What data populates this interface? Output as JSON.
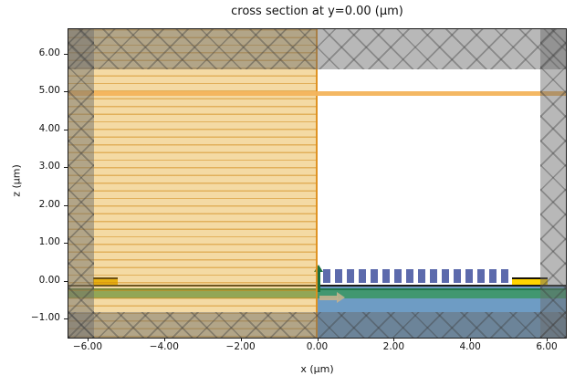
{
  "title": "cross section at y=0.00 (μm)",
  "xlabel": "x (μm)",
  "ylabel": "z (μm)",
  "colors": {
    "background": "#ffffff",
    "frame": "#1a1a1a",
    "text": "#111111",
    "pml_gray": "rgba(106,106,106,0.48)",
    "monitor_yellow": "rgba(229,168,38,0.42)",
    "flux_orange": "rgba(243,180,92,0.95)",
    "tooth_blue": "#5c6aac",
    "slab_green": "rgba(58,150,98,0.85)",
    "substrate_blue": "rgba(85,139,186,0.85)",
    "contact_gold": "#ffd400",
    "source_green": "#1c7040",
    "source_tan": "rgba(196,178,142,0.9)"
  },
  "chart_data": {
    "type": "cross_section_geometry",
    "title": "cross section at y=0.00 (μm)",
    "xlabel": "x (μm)",
    "ylabel": "z (μm)",
    "xlim": [
      -6.5,
      6.5
    ],
    "zlim": [
      -1.5,
      6.65
    ],
    "grid": false,
    "legend": false,
    "x_axis": {
      "ticks": [
        {
          "v": -6,
          "label": "−6.00"
        },
        {
          "v": -4,
          "label": "−4.00"
        },
        {
          "v": -2,
          "label": "−2.00"
        },
        {
          "v": 0,
          "label": "0.00"
        },
        {
          "v": 2,
          "label": "2.00"
        },
        {
          "v": 4,
          "label": "4.00"
        },
        {
          "v": 6,
          "label": "6.00"
        }
      ]
    },
    "z_axis": {
      "ticks": [
        {
          "v": 6,
          "label": "6.00"
        },
        {
          "v": 5,
          "label": "5.00"
        },
        {
          "v": 4,
          "label": "4.00"
        },
        {
          "v": 3,
          "label": "3.00"
        },
        {
          "v": 2,
          "label": "2.00"
        },
        {
          "v": 1,
          "label": "1.00"
        },
        {
          "v": 0,
          "label": "0.00"
        },
        {
          "v": -1,
          "label": "−1.00"
        }
      ]
    },
    "layers": [
      {
        "kind": "rect",
        "name": "substrate-region-blue",
        "x": [
          0,
          6.5
        ],
        "z": [
          -1.5,
          -0.15
        ],
        "fill": "rgba(85,139,186,0.85)"
      },
      {
        "kind": "rect",
        "name": "slab-layer-green",
        "x": [
          -6.5,
          6.5
        ],
        "z": [
          -0.46,
          -0.2
        ],
        "fill": "rgba(58,150,98,0.85)",
        "cap": "rgba(30,115,70,0.9)"
      },
      {
        "kind": "rect",
        "name": "thin-film-layer-black",
        "x": [
          -6.5,
          6.5
        ],
        "z": [
          -0.15,
          -0.095
        ],
        "fill": "rgba(14,14,14,0.95)"
      },
      {
        "kind": "rect",
        "name": "metal-contact-left",
        "x": [
          -5.85,
          -5.22
        ],
        "z": [
          -0.09,
          0.085
        ],
        "fill": "#e8b703",
        "cap": "#181204"
      },
      {
        "kind": "rect",
        "name": "metal-contact-right",
        "x": [
          5.1,
          6.02
        ],
        "z": [
          -0.09,
          0.085
        ],
        "fill": "#ffd400",
        "cap": "#181204"
      },
      {
        "kind": "teeth",
        "name": "grating-tooth",
        "count": 16,
        "x_start": 0.16,
        "period": 0.31,
        "tooth_width": 0.185,
        "z": [
          -0.06,
          0.3
        ],
        "fill": "#5c6aac"
      },
      {
        "kind": "arrow-right",
        "name": "source-direction-arrow",
        "x": [
          0.07,
          0.73
        ],
        "z": -0.45,
        "fill": "rgba(196,178,142,0.9)"
      },
      {
        "kind": "arrow-up",
        "name": "source-polarization-arrow",
        "x": 0.04,
        "z": [
          -0.3,
          0.44
        ],
        "fill": "#1c7040"
      },
      {
        "kind": "rect",
        "name": "field-monitor-region",
        "x": [
          -6.5,
          0
        ],
        "z": [
          -1.5,
          6.65
        ],
        "fill": "rgba(229,168,38,0.42)",
        "hatch": "h",
        "hatch_color": "rgba(206,134,18,0.5)",
        "edge_right": "rgba(222,143,28,0.95)"
      },
      {
        "kind": "rect",
        "name": "flux-monitor-line",
        "x": [
          -6.5,
          6.5
        ],
        "z": [
          4.9,
          5.01
        ],
        "fill": "rgba(243,180,92,0.95)"
      },
      {
        "kind": "rect",
        "name": "pml-boundary-top",
        "x": [
          -6.5,
          6.5
        ],
        "z": [
          5.6,
          6.65
        ],
        "fill": "rgba(106,106,106,0.48)",
        "hatch": "x",
        "hatch_color": "rgba(60,60,60,0.38)"
      },
      {
        "kind": "rect",
        "name": "pml-boundary-bottom",
        "x": [
          -6.5,
          6.5
        ],
        "z": [
          -1.5,
          -0.82
        ],
        "fill": "rgba(106,106,106,0.48)",
        "hatch": "x",
        "hatch_color": "rgba(60,60,60,0.38)"
      },
      {
        "kind": "rect",
        "name": "pml-boundary-left",
        "x": [
          -6.5,
          -5.83
        ],
        "z": [
          -1.5,
          6.65
        ],
        "fill": "rgba(106,106,106,0.48)",
        "hatch": "x",
        "hatch_color": "rgba(60,60,60,0.38)"
      },
      {
        "kind": "rect",
        "name": "pml-boundary-right",
        "x": [
          5.83,
          6.5
        ],
        "z": [
          -1.5,
          6.65
        ],
        "fill": "rgba(106,106,106,0.48)",
        "hatch": "x",
        "hatch_color": "rgba(60,60,60,0.38)"
      }
    ]
  }
}
